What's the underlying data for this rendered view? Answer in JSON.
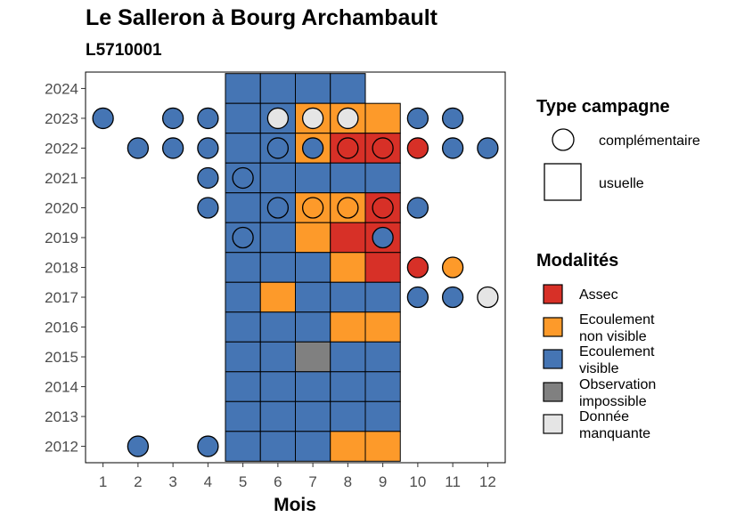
{
  "chart_data": {
    "type": "heatmap",
    "title": "Le Salleron à Bourg Archambault",
    "subtitle": "L5710001",
    "xlabel": "Mois",
    "ylabel": "",
    "x_ticks": [
      "1",
      "2",
      "3",
      "4",
      "5",
      "6",
      "7",
      "8",
      "9",
      "10",
      "11",
      "12"
    ],
    "y_ticks": [
      "2012",
      "2013",
      "2014",
      "2015",
      "2016",
      "2017",
      "2018",
      "2019",
      "2020",
      "2021",
      "2022",
      "2023",
      "2024"
    ],
    "xlim": [
      0.5,
      12.5
    ],
    "ylim": [
      2011.45,
      2024.55
    ],
    "grid": false,
    "legend_position": "right",
    "colors": {
      "Assec": "#d73027",
      "Ecoulement non visible": "#fd9a2a",
      "Ecoulement visible": "#4575b4",
      "Observation impossible": "#808080",
      "Donnée manquante": "#e5e5e5"
    },
    "legend": {
      "type_title": "Type campagne",
      "type_items": [
        {
          "label": "complémentaire",
          "shape": "circle"
        },
        {
          "label": "usuelle",
          "shape": "square"
        }
      ],
      "modalites_title": "Modalités",
      "modalites_items": [
        {
          "key": "Assec",
          "lines": [
            "Assec"
          ]
        },
        {
          "key": "Ecoulement non visible",
          "lines": [
            "Ecoulement",
            "non visible"
          ]
        },
        {
          "key": "Ecoulement visible",
          "lines": [
            "Ecoulement",
            "visible"
          ]
        },
        {
          "key": "Observation impossible",
          "lines": [
            "Observation",
            "impossible"
          ]
        },
        {
          "key": "Donnée manquante",
          "lines": [
            "Donnée",
            "manquante"
          ]
        }
      ]
    },
    "usuelle": [
      {
        "year": 2024,
        "months": [
          "Ecoulement visible",
          "Ecoulement visible",
          "Ecoulement visible",
          "Ecoulement visible",
          null
        ]
      },
      {
        "year": 2023,
        "months": [
          "Ecoulement visible",
          "Ecoulement visible",
          "Ecoulement non visible",
          "Ecoulement non visible",
          "Ecoulement non visible"
        ]
      },
      {
        "year": 2022,
        "months": [
          "Ecoulement visible",
          "Ecoulement visible",
          "Ecoulement non visible",
          "Assec",
          "Assec"
        ]
      },
      {
        "year": 2021,
        "months": [
          "Ecoulement visible",
          "Ecoulement visible",
          "Ecoulement visible",
          "Ecoulement visible",
          "Ecoulement visible"
        ]
      },
      {
        "year": 2020,
        "months": [
          "Ecoulement visible",
          "Ecoulement visible",
          "Ecoulement non visible",
          "Ecoulement non visible",
          "Assec"
        ]
      },
      {
        "year": 2019,
        "months": [
          "Ecoulement visible",
          "Ecoulement visible",
          "Ecoulement non visible",
          "Assec",
          "Assec"
        ]
      },
      {
        "year": 2018,
        "months": [
          "Ecoulement visible",
          "Ecoulement visible",
          "Ecoulement visible",
          "Ecoulement non visible",
          "Assec"
        ]
      },
      {
        "year": 2017,
        "months": [
          "Ecoulement visible",
          "Ecoulement non visible",
          "Ecoulement visible",
          "Ecoulement visible",
          "Ecoulement visible"
        ]
      },
      {
        "year": 2016,
        "months": [
          "Ecoulement visible",
          "Ecoulement visible",
          "Ecoulement visible",
          "Ecoulement non visible",
          "Ecoulement non visible"
        ]
      },
      {
        "year": 2015,
        "months": [
          "Ecoulement visible",
          "Ecoulement visible",
          "Observation impossible",
          "Ecoulement visible",
          "Ecoulement visible"
        ]
      },
      {
        "year": 2014,
        "months": [
          "Ecoulement visible",
          "Ecoulement visible",
          "Ecoulement visible",
          "Ecoulement visible",
          "Ecoulement visible"
        ]
      },
      {
        "year": 2013,
        "months": [
          "Ecoulement visible",
          "Ecoulement visible",
          "Ecoulement visible",
          "Ecoulement visible",
          "Ecoulement visible"
        ]
      },
      {
        "year": 2012,
        "months": [
          "Ecoulement visible",
          "Ecoulement visible",
          "Ecoulement visible",
          "Ecoulement non visible",
          "Ecoulement non visible"
        ]
      }
    ],
    "usuelle_months": [
      5,
      6,
      7,
      8,
      9
    ],
    "complementaire": [
      {
        "year": 2023,
        "month": 1,
        "modalite": "Ecoulement visible"
      },
      {
        "year": 2023,
        "month": 3,
        "modalite": "Ecoulement visible"
      },
      {
        "year": 2023,
        "month": 4,
        "modalite": "Ecoulement visible"
      },
      {
        "year": 2023,
        "month": 6,
        "modalite": "Donnée manquante"
      },
      {
        "year": 2023,
        "month": 7,
        "modalite": "Donnée manquante"
      },
      {
        "year": 2023,
        "month": 8,
        "modalite": "Donnée manquante"
      },
      {
        "year": 2023,
        "month": 10,
        "modalite": "Ecoulement visible"
      },
      {
        "year": 2023,
        "month": 11,
        "modalite": "Ecoulement visible"
      },
      {
        "year": 2022,
        "month": 2,
        "modalite": "Ecoulement visible"
      },
      {
        "year": 2022,
        "month": 3,
        "modalite": "Ecoulement visible"
      },
      {
        "year": 2022,
        "month": 4,
        "modalite": "Ecoulement visible"
      },
      {
        "year": 2022,
        "month": 6,
        "modalite": "Ecoulement visible"
      },
      {
        "year": 2022,
        "month": 7,
        "modalite": "Ecoulement visible"
      },
      {
        "year": 2022,
        "month": 8,
        "modalite": "Assec"
      },
      {
        "year": 2022,
        "month": 9,
        "modalite": "Assec"
      },
      {
        "year": 2022,
        "month": 10,
        "modalite": "Assec"
      },
      {
        "year": 2022,
        "month": 11,
        "modalite": "Ecoulement visible"
      },
      {
        "year": 2022,
        "month": 12,
        "modalite": "Ecoulement visible"
      },
      {
        "year": 2021,
        "month": 4,
        "modalite": "Ecoulement visible"
      },
      {
        "year": 2021,
        "month": 5,
        "modalite": "Ecoulement visible"
      },
      {
        "year": 2020,
        "month": 4,
        "modalite": "Ecoulement visible"
      },
      {
        "year": 2020,
        "month": 6,
        "modalite": "Ecoulement visible"
      },
      {
        "year": 2020,
        "month": 7,
        "modalite": "Ecoulement non visible"
      },
      {
        "year": 2020,
        "month": 8,
        "modalite": "Ecoulement non visible"
      },
      {
        "year": 2020,
        "month": 9,
        "modalite": "Assec"
      },
      {
        "year": 2020,
        "month": 10,
        "modalite": "Ecoulement visible"
      },
      {
        "year": 2019,
        "month": 5,
        "modalite": "Ecoulement visible"
      },
      {
        "year": 2019,
        "month": 9,
        "modalite": "Ecoulement visible"
      },
      {
        "year": 2018,
        "month": 10,
        "modalite": "Assec"
      },
      {
        "year": 2018,
        "month": 11,
        "modalite": "Ecoulement non visible"
      },
      {
        "year": 2017,
        "month": 10,
        "modalite": "Ecoulement visible"
      },
      {
        "year": 2017,
        "month": 11,
        "modalite": "Ecoulement visible"
      },
      {
        "year": 2017,
        "month": 12,
        "modalite": "Donnée manquante"
      },
      {
        "year": 2012,
        "month": 2,
        "modalite": "Ecoulement visible"
      },
      {
        "year": 2012,
        "month": 4,
        "modalite": "Ecoulement visible"
      }
    ]
  }
}
